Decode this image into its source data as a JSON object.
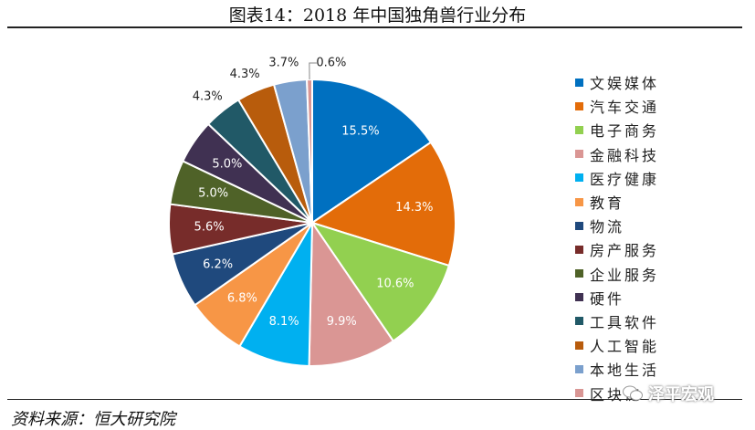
{
  "title": "图表14：2018 年中国独角兽行业分布",
  "source": "资料来源：恒大研究院",
  "watermark": "泽平宏观",
  "chart_data": {
    "type": "pie",
    "title": "图表14：2018 年中国独角兽行业分布",
    "legend_position": "right",
    "slices": [
      {
        "label": "文娱媒体",
        "value": 15.5,
        "display": "15.5%",
        "color": "#0070C0"
      },
      {
        "label": "汽车交通",
        "value": 14.3,
        "display": "14.3%",
        "color": "#E36C09"
      },
      {
        "label": "电子商务",
        "value": 10.6,
        "display": "10.6%",
        "color": "#92D050"
      },
      {
        "label": "金融科技",
        "value": 9.9,
        "display": "9.9%",
        "color": "#DA9694"
      },
      {
        "label": "医疗健康",
        "value": 8.1,
        "display": "8.1%",
        "color": "#00B0F0"
      },
      {
        "label": "教育",
        "value": 6.8,
        "display": "6.8%",
        "color": "#F79646"
      },
      {
        "label": "物流",
        "value": 6.2,
        "display": "6.2%",
        "color": "#1F497D"
      },
      {
        "label": "房产服务",
        "value": 5.6,
        "display": "5.6%",
        "color": "#772C2A"
      },
      {
        "label": "企业服务",
        "value": 5.0,
        "display": "5.0%",
        "color": "#4F6228"
      },
      {
        "label": "硬件",
        "value": 5.0,
        "display": "5.0%",
        "color": "#403152"
      },
      {
        "label": "工具软件",
        "value": 4.3,
        "display": "4.3%",
        "color": "#215967"
      },
      {
        "label": "人工智能",
        "value": 4.3,
        "display": "4.3%",
        "color": "#B85C0C"
      },
      {
        "label": "本地生活",
        "value": 3.7,
        "display": "3.7%",
        "color": "#7BA0CD"
      },
      {
        "label": "区块链",
        "value": 0.6,
        "display": "0.6%",
        "color": "#D99694"
      }
    ]
  }
}
